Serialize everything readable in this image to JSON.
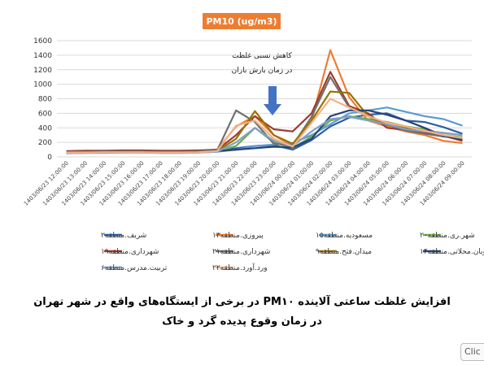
{
  "chart_data": {
    "type": "line",
    "title": "PM10 (ug/m3)",
    "title_bg_color": "#ED7D31",
    "ylim": [
      0,
      1600
    ],
    "yticks": [
      0,
      200,
      400,
      600,
      800,
      1000,
      1200,
      1400,
      1600
    ],
    "grid": true,
    "legend_placement": "bottom",
    "categories": [
      "1403/06/23 12:00:00",
      "1403/06/23 13:00:00",
      "1403/06/23 14:00:00",
      "1403/06/23 15:00:00",
      "1403/06/23 16:00:00",
      "1403/06/23 17:00:00",
      "1403/06/23 18:00:00",
      "1403/06/23 19:00:00",
      "1403/06/23 20:00:00",
      "1403/06/23 21:00:00",
      "1403/06/23 22:00:00",
      "1403/06/23 23:00:00",
      "1403/06/24 00:00:00",
      "1403/06/24 01:00:00",
      "1403/06/24 02:00:00",
      "1403/06/24 03:00:00",
      "1403/06/24 04:00:00",
      "1403/06/24 05:00:00",
      "1403/06/24 06:00:00",
      "1403/06/24 07:00:00",
      "1403/06/24 08:00:00",
      "1403/06/24 09:00:00"
    ],
    "series": [
      {
        "name": "شریف.منطقه۲",
        "color": "#2E5EA8",
        "values": [
          60,
          70,
          70,
          75,
          75,
          70,
          70,
          75,
          90,
          120,
          150,
          160,
          100,
          230,
          420,
          540,
          580,
          600,
          500,
          480,
          410,
          320
        ]
      },
      {
        "name": "پیروزی.منطقه۱۳",
        "color": "#ED7D31",
        "values": [
          70,
          75,
          80,
          80,
          80,
          75,
          75,
          80,
          100,
          420,
          560,
          300,
          150,
          500,
          1470,
          820,
          500,
          420,
          350,
          300,
          220,
          190
        ]
      },
      {
        "name": "مسعودیه.منطقه۱۵",
        "color": "#5B9BD5",
        "values": [
          50,
          55,
          60,
          60,
          60,
          55,
          55,
          60,
          70,
          100,
          150,
          170,
          190,
          300,
          450,
          600,
          640,
          680,
          620,
          560,
          520,
          430
        ]
      },
      {
        "name": "شهر.ری.منطقه۲۰",
        "color": "#70AD47",
        "values": [
          60,
          65,
          65,
          70,
          70,
          65,
          65,
          70,
          80,
          150,
          400,
          200,
          120,
          280,
          500,
          560,
          520,
          480,
          420,
          380,
          300,
          270
        ]
      },
      {
        "name": "شهرداری.منطقه۱۹",
        "color": "#9E3C2D",
        "values": [
          80,
          85,
          85,
          90,
          90,
          85,
          85,
          90,
          100,
          300,
          560,
          380,
          350,
          600,
          1170,
          700,
          600,
          400,
          370,
          330,
          290,
          220
        ]
      },
      {
        "name": "شهرداری.منطقه۲۱",
        "color": "#6F6F6F",
        "values": [
          70,
          70,
          75,
          75,
          75,
          70,
          70,
          75,
          90,
          640,
          480,
          180,
          160,
          550,
          1100,
          680,
          560,
          450,
          360,
          320,
          280,
          260
        ]
      },
      {
        "name": "میدان.فتح.منطقه۹",
        "color": "#997300",
        "values": [
          60,
          60,
          65,
          65,
          65,
          60,
          60,
          65,
          80,
          250,
          630,
          300,
          180,
          500,
          900,
          880,
          560,
          440,
          400,
          360,
          330,
          300
        ]
      },
      {
        "name": "اتوبان.محلاتی.منطقه۱۴",
        "color": "#264478",
        "values": [
          60,
          60,
          65,
          65,
          65,
          60,
          60,
          65,
          80,
          100,
          120,
          140,
          130,
          250,
          560,
          640,
          640,
          580,
          500,
          400,
          290,
          240
        ]
      },
      {
        "name": "تربیت.مدرس.منطقه۶",
        "color": "#7F9FCF",
        "values": [
          50,
          55,
          55,
          60,
          60,
          55,
          55,
          60,
          70,
          200,
          400,
          220,
          150,
          350,
          520,
          550,
          500,
          450,
          380,
          350,
          330,
          300
        ]
      },
      {
        "name": "ورد.آورد.منطقه۲۲",
        "color": "#F4B183",
        "values": [
          60,
          60,
          65,
          65,
          65,
          60,
          60,
          65,
          80,
          430,
          500,
          250,
          140,
          470,
          800,
          680,
          560,
          470,
          420,
          360,
          300,
          260
        ]
      }
    ],
    "annotation": {
      "lines": [
        "کاهش نسبی غلظت",
        "در زمان بارش باران"
      ],
      "arrow_color": "#4472C4"
    }
  },
  "caption": {
    "line1": "افزایش غلظت ساعتی آلاینده PM۱۰ در برخی از ایستگاه‌های واقع در شهر تهران",
    "line2": "در زمان وقوع پدیده گرد و خاک"
  },
  "corner_tag": "Clic"
}
